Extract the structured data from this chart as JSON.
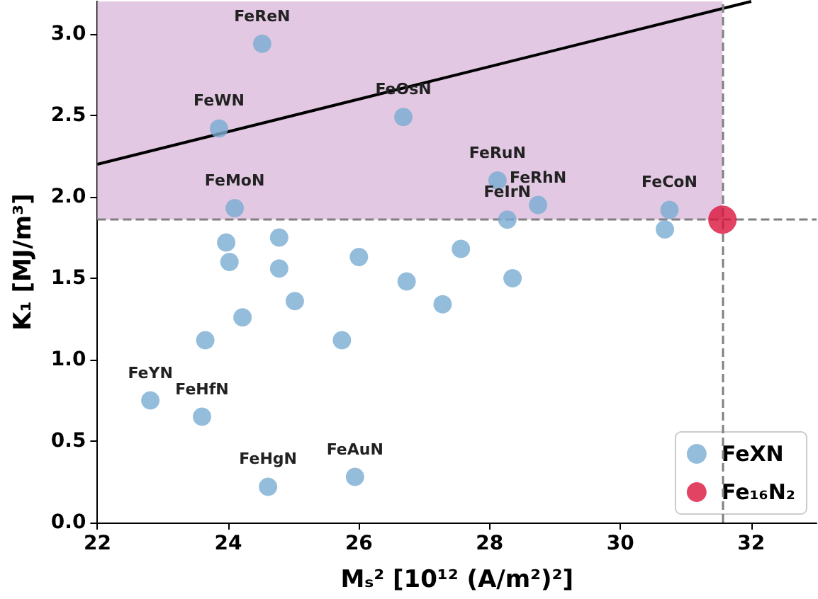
{
  "chart_data": {
    "type": "scatter",
    "xlabel": "Mₛ² [10¹² (A/m²)²]",
    "ylabel": "K₁ [MJ/m³]",
    "xlim": [
      22,
      33
    ],
    "xticks": [
      22,
      24,
      26,
      28,
      30,
      32
    ],
    "ylim": [
      0,
      3.2
    ],
    "yticks": [
      {
        "value": 0,
        "label": "0.0"
      },
      0.5,
      {
        "value": 1,
        "label": "1.0"
      },
      1.5,
      {
        "value": 2,
        "label": "2.0"
      },
      2.5,
      {
        "value": 3,
        "label": "3.0"
      }
    ],
    "grid": false,
    "legend": "bottom right",
    "marker": "circle",
    "series": [
      {
        "name": "FeXN",
        "color": "#79add2",
        "x": [
          24.52,
          23.86,
          26.68,
          24.1,
          28.12,
          28.74,
          28.27,
          30.75,
          23.97,
          24.0,
          24.02,
          24.78,
          24.78,
          26.0,
          25.02,
          27.56,
          26.73,
          27.28,
          28.35,
          30.68,
          23.65,
          24.22,
          25.74,
          22.81,
          23.6,
          24.61,
          25.94
        ],
        "values": [
          2.94,
          2.42,
          2.49,
          1.93,
          2.1,
          1.95,
          1.86,
          1.92,
          1.72,
          null,
          1.6,
          1.75,
          1.56,
          1.63,
          1.36,
          1.68,
          1.48,
          1.34,
          1.5,
          1.8,
          1.12,
          1.26,
          1.12,
          0.75,
          0.65,
          0.22,
          0.28
        ]
      },
      {
        "name": "Fe₁₆N₂",
        "color": "#dc143c",
        "x": [
          31.56
        ],
        "values": [
          1.86
        ]
      },
      {
        "type": "line",
        "color": "#000000",
        "line_style": "solid",
        "marker": "none",
        "x": [
          22,
          32
        ],
        "values": [
          2.2,
          3.2
        ]
      }
    ],
    "ref_lines": [
      {
        "axis": "x",
        "value": 31.56,
        "color": "#808080",
        "line_style": "dashed"
      },
      {
        "axis": "y",
        "value": 1.86,
        "color": "#808080",
        "line_style": "dashed"
      }
    ],
    "bands": [
      {
        "axis": "y",
        "from": 1.86,
        "to": 3.2,
        "color": "#e2c8e2"
      }
    ],
    "annotations": [
      {
        "text": "FeReN",
        "x": 24.52,
        "y": 2.94
      },
      {
        "text": "FeWN",
        "x": 23.86,
        "y": 2.42
      },
      {
        "text": "FeOsN",
        "x": 26.68,
        "y": 2.49
      },
      {
        "text": "FeMoN",
        "x": 24.1,
        "y": 1.93
      },
      {
        "text": "FeRuN",
        "x": 28.12,
        "y": 2.1
      },
      {
        "text": "FeRhN",
        "x": 28.74,
        "y": 1.95
      },
      {
        "text": "FeIrN",
        "x": 28.27,
        "y": 1.86
      },
      {
        "text": "FeCoN",
        "x": 30.75,
        "y": 1.92
      },
      {
        "text": "FeYN",
        "x": 22.81,
        "y": 0.75
      },
      {
        "text": "FeHfN",
        "x": 23.6,
        "y": 0.65
      },
      {
        "text": "FeHgN",
        "x": 24.61,
        "y": 0.22
      },
      {
        "text": "FeAuN",
        "x": 25.94,
        "y": 0.28
      }
    ]
  }
}
